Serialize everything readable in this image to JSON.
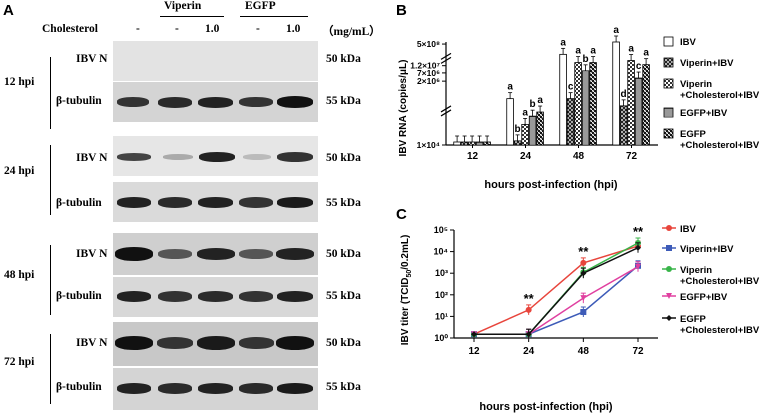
{
  "panelA": {
    "letter": "A",
    "header": {
      "row_label": "Cholesterol",
      "unit": "（mg/mL）",
      "groups": [
        "Viperin",
        "EGFP"
      ],
      "lane_values": [
        "-",
        "-",
        "1.0",
        "-",
        "1.0"
      ]
    },
    "blocks": [
      {
        "time": "12 hpi",
        "rows": [
          {
            "protein": "IBV N",
            "kda": "50 kDa"
          },
          {
            "protein": "β-tubulin",
            "kda": "55 kDa"
          }
        ]
      },
      {
        "time": "24 hpi",
        "rows": [
          {
            "protein": "IBV N",
            "kda": "50 kDa"
          },
          {
            "protein": "β-tubulin",
            "kda": "55 kDa"
          }
        ]
      },
      {
        "time": "48 hpi",
        "rows": [
          {
            "protein": "IBV N",
            "kda": "50 kDa"
          },
          {
            "protein": "β-tubulin",
            "kda": "55 kDa"
          }
        ]
      },
      {
        "time": "72 hpi",
        "rows": [
          {
            "protein": "IBV N",
            "kda": "50 kDa"
          },
          {
            "protein": "β-tubulin",
            "kda": "55 kDa"
          }
        ]
      }
    ]
  },
  "chart_data": [
    {
      "panel": "B",
      "type": "bar",
      "ylabel": "IBV RNA (copies/μL)",
      "xlabel": "hours post-infection (hpi)",
      "categories": [
        "12",
        "24",
        "48",
        "72"
      ],
      "y_tick_labels": [
        "1×10⁴",
        "2×10⁶",
        "7×10⁶",
        "1.2×10⁷",
        "5×10⁸"
      ],
      "series": [
        {
          "name": "IBV",
          "values": [
            0.006,
            0.45,
            0.88,
            1.0
          ]
        },
        {
          "name": "Viperin+IBV",
          "values": [
            0.006,
            0.04,
            0.45,
            0.38
          ]
        },
        {
          "name": "Viperin\n+Cholesterol+IBV",
          "values": [
            0.006,
            0.2,
            0.8,
            0.82
          ]
        },
        {
          "name": "EGFP+IBV",
          "values": [
            0.006,
            0.28,
            0.72,
            0.65
          ]
        },
        {
          "name": "EGFP\n+Cholesterol+IBV",
          "values": [
            0.006,
            0.32,
            0.8,
            0.78
          ]
        }
      ],
      "significance_letters": [
        [
          "",
          "",
          "",
          "",
          ""
        ],
        [
          "a",
          "b",
          "a",
          "b",
          "a"
        ],
        [
          "a",
          "c",
          "a",
          "b",
          "a"
        ],
        [
          "a",
          "d",
          "a",
          "c",
          "a"
        ]
      ],
      "legend_placement": "right"
    },
    {
      "panel": "C",
      "type": "line",
      "ylabel": "IBV titer (TCID50/0.2mL)",
      "xlabel": "hours post-infection (hpi)",
      "x": [
        12,
        24,
        48,
        72
      ],
      "y_log_range": [
        0,
        5
      ],
      "y_tick_labels": [
        "10⁰",
        "10¹",
        "10²",
        "10³",
        "10⁴",
        "10⁵"
      ],
      "series": [
        {
          "name": "IBV",
          "color": "#e8453c",
          "marker": "circle",
          "values": [
            1.5,
            20,
            3000,
            18000
          ]
        },
        {
          "name": "Viperin+IBV",
          "color": "#3d5bb8",
          "marker": "square",
          "values": [
            1.5,
            1.5,
            16,
            2200
          ]
        },
        {
          "name": "Viperin\n+Cholesterol+IBV",
          "color": "#38b449",
          "marker": "circle",
          "values": [
            1.5,
            1.5,
            1100,
            25000
          ]
        },
        {
          "name": "EGFP+IBV",
          "color": "#e040a0",
          "marker": "triangle-down",
          "values": [
            1.5,
            1.5,
            70,
            2000
          ]
        },
        {
          "name": "EGFP\n+Cholesterol+IBV",
          "color": "#111111",
          "marker": "diamond",
          "values": [
            1.5,
            1.5,
            1000,
            15000
          ]
        }
      ],
      "annotations": [
        {
          "x": 24,
          "text": "**"
        },
        {
          "x": 48,
          "text": "**"
        },
        {
          "x": 72,
          "text": "**"
        }
      ],
      "legend_placement": "right"
    }
  ],
  "panel_letters": {
    "B": "B",
    "C": "C"
  }
}
